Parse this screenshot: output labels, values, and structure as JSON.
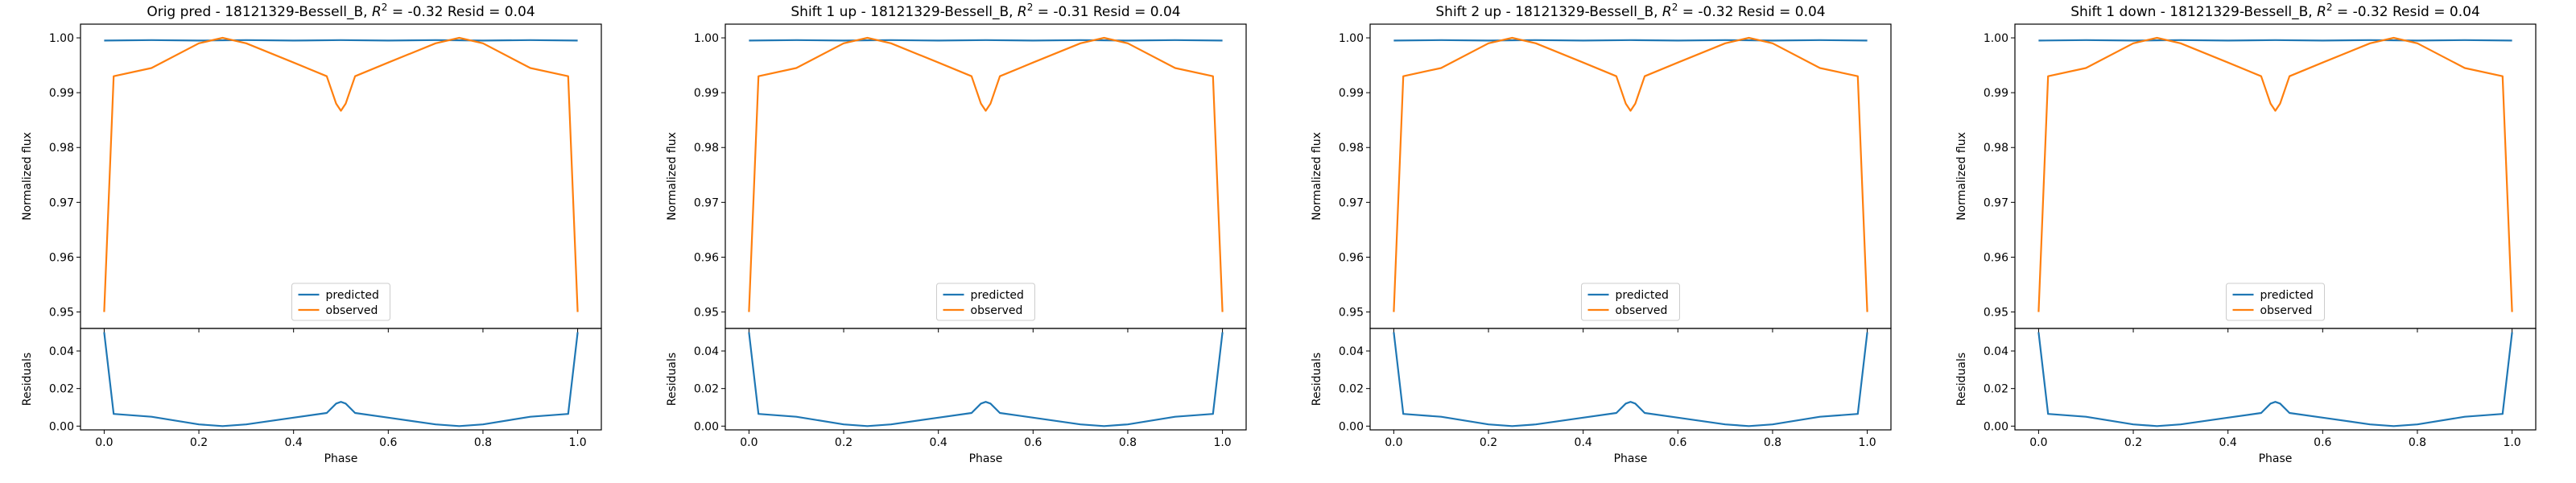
{
  "chart_data": [
    {
      "type": "line",
      "title_prefix": "Orig pred - 18121329-Bessell_B, ",
      "r2_label": "R",
      "r2_exp": "2",
      "title_suffix": " = -0.32 Resid = 0.04",
      "xlabel": "Phase",
      "ylabel_top": "Normalized flux",
      "ylabel_bottom": "Residuals",
      "xlim": [
        -0.05,
        1.05
      ],
      "ylim_top": [
        0.947,
        1.0025
      ],
      "ylim_bottom": [
        -0.002,
        0.052
      ],
      "xticks": [
        "0.0",
        "0.2",
        "0.4",
        "0.6",
        "0.8",
        "1.0"
      ],
      "yticks_top": [
        "0.95",
        "0.96",
        "0.97",
        "0.98",
        "0.99",
        "1.00"
      ],
      "yticks_bottom": [
        "0.00",
        "0.02",
        "0.04"
      ],
      "legend": [
        "predicted",
        "observed"
      ],
      "legend_position": "lower center",
      "series": [
        {
          "name": "predicted",
          "x": [
            0.0,
            0.1,
            0.2,
            0.3,
            0.4,
            0.5,
            0.6,
            0.7,
            0.8,
            0.9,
            1.0
          ],
          "values": [
            0.9995,
            0.9996,
            0.9995,
            0.9996,
            0.9995,
            0.9996,
            0.9995,
            0.9996,
            0.9995,
            0.9996,
            0.9995
          ]
        },
        {
          "name": "observed",
          "x": [
            0.0,
            0.02,
            0.1,
            0.2,
            0.25,
            0.3,
            0.4,
            0.47,
            0.49,
            0.5,
            0.51,
            0.53,
            0.6,
            0.7,
            0.75,
            0.8,
            0.9,
            0.98,
            1.0
          ],
          "values": [
            0.95,
            0.993,
            0.9945,
            0.999,
            1.0,
            0.999,
            0.9955,
            0.993,
            0.988,
            0.9867,
            0.988,
            0.993,
            0.9955,
            0.999,
            1.0,
            0.999,
            0.9945,
            0.993,
            0.95
          ]
        }
      ],
      "residual_series": {
        "name": "residual",
        "x": [
          0.0,
          0.02,
          0.1,
          0.2,
          0.25,
          0.3,
          0.4,
          0.47,
          0.49,
          0.5,
          0.51,
          0.53,
          0.6,
          0.7,
          0.75,
          0.8,
          0.9,
          0.98,
          1.0
        ],
        "values": [
          0.05,
          0.0065,
          0.005,
          0.0009,
          0.0,
          0.0009,
          0.0045,
          0.007,
          0.012,
          0.0129,
          0.012,
          0.007,
          0.0045,
          0.0009,
          0.0,
          0.0009,
          0.005,
          0.0065,
          0.05
        ]
      },
      "colors": {
        "predicted": "#1f77b4",
        "observed": "#ff7f0e",
        "residual": "#1f77b4"
      }
    },
    {
      "type": "line",
      "title_prefix": "Shift 1 up - 18121329-Bessell_B, ",
      "r2_label": "R",
      "r2_exp": "2",
      "title_suffix": " = -0.31 Resid = 0.04",
      "xlabel": "Phase",
      "ylabel_top": "Normalized flux",
      "ylabel_bottom": "Residuals",
      "xlim": [
        -0.05,
        1.05
      ],
      "ylim_top": [
        0.947,
        1.0025
      ],
      "ylim_bottom": [
        -0.002,
        0.052
      ],
      "xticks": [
        "0.0",
        "0.2",
        "0.4",
        "0.6",
        "0.8",
        "1.0"
      ],
      "yticks_top": [
        "0.95",
        "0.96",
        "0.97",
        "0.98",
        "0.99",
        "1.00"
      ],
      "yticks_bottom": [
        "0.00",
        "0.02",
        "0.04"
      ],
      "legend": [
        "predicted",
        "observed"
      ],
      "legend_position": "lower center",
      "series": [
        {
          "name": "predicted",
          "x": [
            0.0,
            0.1,
            0.2,
            0.3,
            0.4,
            0.5,
            0.6,
            0.7,
            0.8,
            0.9,
            1.0
          ],
          "values": [
            0.9995,
            0.9996,
            0.9995,
            0.9996,
            0.9995,
            0.9996,
            0.9995,
            0.9996,
            0.9995,
            0.9996,
            0.9995
          ]
        },
        {
          "name": "observed",
          "x": [
            0.0,
            0.02,
            0.1,
            0.2,
            0.25,
            0.3,
            0.4,
            0.47,
            0.49,
            0.5,
            0.51,
            0.53,
            0.6,
            0.7,
            0.75,
            0.8,
            0.9,
            0.98,
            1.0
          ],
          "values": [
            0.95,
            0.993,
            0.9945,
            0.999,
            1.0,
            0.999,
            0.9955,
            0.993,
            0.988,
            0.9867,
            0.988,
            0.993,
            0.9955,
            0.999,
            1.0,
            0.999,
            0.9945,
            0.993,
            0.95
          ]
        }
      ],
      "residual_series": {
        "name": "residual",
        "x": [
          0.0,
          0.02,
          0.1,
          0.2,
          0.25,
          0.3,
          0.4,
          0.47,
          0.49,
          0.5,
          0.51,
          0.53,
          0.6,
          0.7,
          0.75,
          0.8,
          0.9,
          0.98,
          1.0
        ],
        "values": [
          0.05,
          0.0065,
          0.005,
          0.0009,
          0.0,
          0.0009,
          0.0045,
          0.007,
          0.012,
          0.0129,
          0.012,
          0.007,
          0.0045,
          0.0009,
          0.0,
          0.0009,
          0.005,
          0.0065,
          0.05
        ]
      },
      "colors": {
        "predicted": "#1f77b4",
        "observed": "#ff7f0e",
        "residual": "#1f77b4"
      }
    },
    {
      "type": "line",
      "title_prefix": "Shift 2 up - 18121329-Bessell_B, ",
      "r2_label": "R",
      "r2_exp": "2",
      "title_suffix": " = -0.32 Resid = 0.04",
      "xlabel": "Phase",
      "ylabel_top": "Normalized flux",
      "ylabel_bottom": "Residuals",
      "xlim": [
        -0.05,
        1.05
      ],
      "ylim_top": [
        0.947,
        1.0025
      ],
      "ylim_bottom": [
        -0.002,
        0.052
      ],
      "xticks": [
        "0.0",
        "0.2",
        "0.4",
        "0.6",
        "0.8",
        "1.0"
      ],
      "yticks_top": [
        "0.95",
        "0.96",
        "0.97",
        "0.98",
        "0.99",
        "1.00"
      ],
      "yticks_bottom": [
        "0.00",
        "0.02",
        "0.04"
      ],
      "legend": [
        "predicted",
        "observed"
      ],
      "legend_position": "lower center",
      "series": [
        {
          "name": "predicted",
          "x": [
            0.0,
            0.1,
            0.2,
            0.3,
            0.4,
            0.5,
            0.6,
            0.7,
            0.8,
            0.9,
            1.0
          ],
          "values": [
            0.9995,
            0.9996,
            0.9995,
            0.9996,
            0.9995,
            0.9996,
            0.9995,
            0.9996,
            0.9995,
            0.9996,
            0.9995
          ]
        },
        {
          "name": "observed",
          "x": [
            0.0,
            0.02,
            0.1,
            0.2,
            0.25,
            0.3,
            0.4,
            0.47,
            0.49,
            0.5,
            0.51,
            0.53,
            0.6,
            0.7,
            0.75,
            0.8,
            0.9,
            0.98,
            1.0
          ],
          "values": [
            0.95,
            0.993,
            0.9945,
            0.999,
            1.0,
            0.999,
            0.9955,
            0.993,
            0.988,
            0.9867,
            0.988,
            0.993,
            0.9955,
            0.999,
            1.0,
            0.999,
            0.9945,
            0.993,
            0.95
          ]
        }
      ],
      "residual_series": {
        "name": "residual",
        "x": [
          0.0,
          0.02,
          0.1,
          0.2,
          0.25,
          0.3,
          0.4,
          0.47,
          0.49,
          0.5,
          0.51,
          0.53,
          0.6,
          0.7,
          0.75,
          0.8,
          0.9,
          0.98,
          1.0
        ],
        "values": [
          0.05,
          0.0065,
          0.005,
          0.0009,
          0.0,
          0.0009,
          0.0045,
          0.007,
          0.012,
          0.0129,
          0.012,
          0.007,
          0.0045,
          0.0009,
          0.0,
          0.0009,
          0.005,
          0.0065,
          0.05
        ]
      },
      "colors": {
        "predicted": "#1f77b4",
        "observed": "#ff7f0e",
        "residual": "#1f77b4"
      }
    },
    {
      "type": "line",
      "title_prefix": "Shift 1 down - 18121329-Bessell_B, ",
      "r2_label": "R",
      "r2_exp": "2",
      "title_suffix": " = -0.32 Resid = 0.04",
      "xlabel": "Phase",
      "ylabel_top": "Normalized flux",
      "ylabel_bottom": "Residuals",
      "xlim": [
        -0.05,
        1.05
      ],
      "ylim_top": [
        0.947,
        1.0025
      ],
      "ylim_bottom": [
        -0.002,
        0.052
      ],
      "xticks": [
        "0.0",
        "0.2",
        "0.4",
        "0.6",
        "0.8",
        "1.0"
      ],
      "yticks_top": [
        "0.95",
        "0.96",
        "0.97",
        "0.98",
        "0.99",
        "1.00"
      ],
      "yticks_bottom": [
        "0.00",
        "0.02",
        "0.04"
      ],
      "legend": [
        "predicted",
        "observed"
      ],
      "legend_position": "lower center",
      "series": [
        {
          "name": "predicted",
          "x": [
            0.0,
            0.1,
            0.2,
            0.3,
            0.4,
            0.5,
            0.6,
            0.7,
            0.8,
            0.9,
            1.0
          ],
          "values": [
            0.9995,
            0.9996,
            0.9995,
            0.9996,
            0.9995,
            0.9996,
            0.9995,
            0.9996,
            0.9995,
            0.9996,
            0.9995
          ]
        },
        {
          "name": "observed",
          "x": [
            0.0,
            0.02,
            0.1,
            0.2,
            0.25,
            0.3,
            0.4,
            0.47,
            0.49,
            0.5,
            0.51,
            0.53,
            0.6,
            0.7,
            0.75,
            0.8,
            0.9,
            0.98,
            1.0
          ],
          "values": [
            0.95,
            0.993,
            0.9945,
            0.999,
            1.0,
            0.999,
            0.9955,
            0.993,
            0.988,
            0.9867,
            0.988,
            0.993,
            0.9955,
            0.999,
            1.0,
            0.999,
            0.9945,
            0.993,
            0.95
          ]
        }
      ],
      "residual_series": {
        "name": "residual",
        "x": [
          0.0,
          0.02,
          0.1,
          0.2,
          0.25,
          0.3,
          0.4,
          0.47,
          0.49,
          0.5,
          0.51,
          0.53,
          0.6,
          0.7,
          0.75,
          0.8,
          0.9,
          0.98,
          1.0
        ],
        "values": [
          0.05,
          0.0065,
          0.005,
          0.0009,
          0.0,
          0.0009,
          0.0045,
          0.007,
          0.012,
          0.0129,
          0.012,
          0.007,
          0.0045,
          0.0009,
          0.0,
          0.0009,
          0.005,
          0.0065,
          0.05
        ]
      },
      "colors": {
        "predicted": "#1f77b4",
        "observed": "#ff7f0e",
        "residual": "#1f77b4"
      }
    }
  ]
}
